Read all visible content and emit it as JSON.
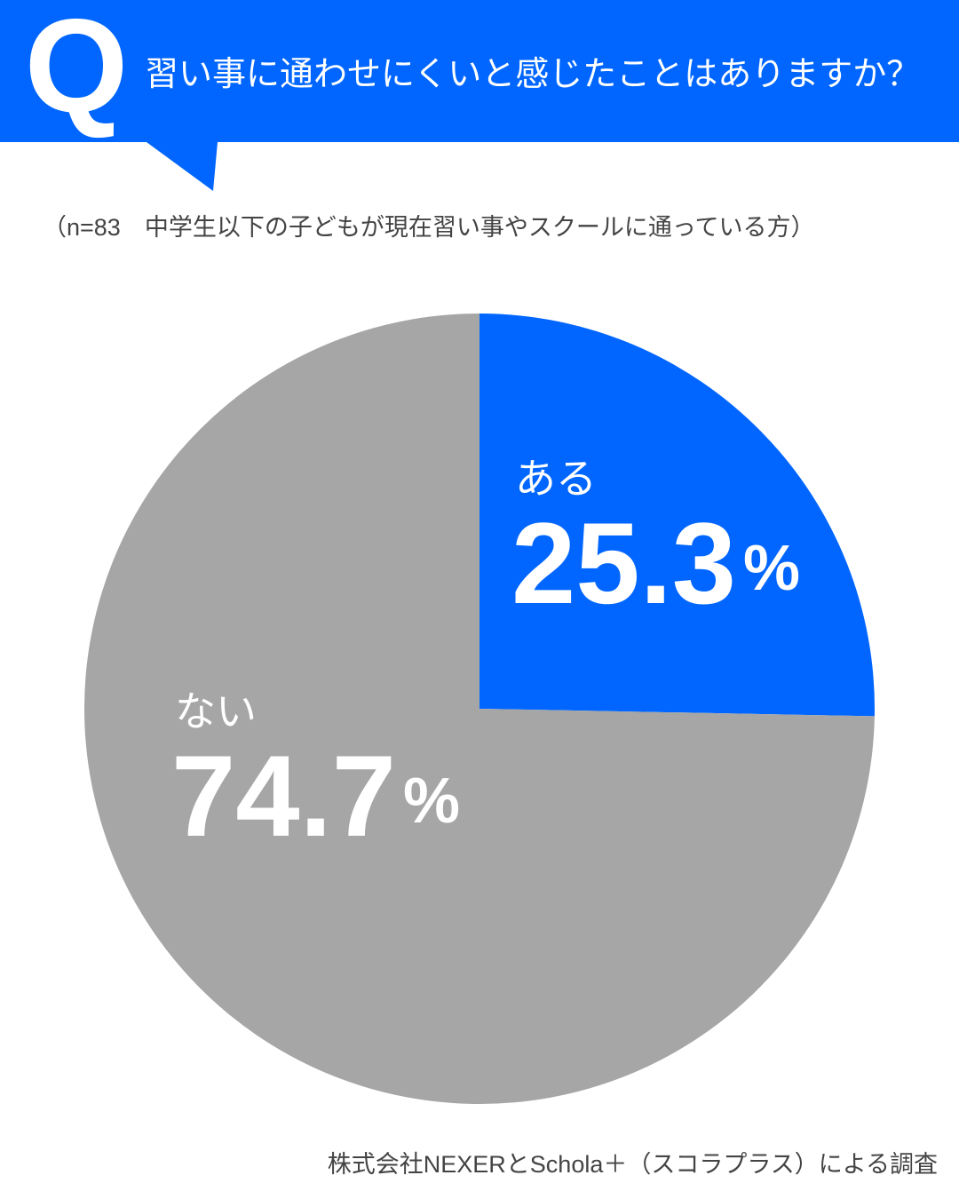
{
  "chart_data": {
    "type": "pie",
    "badge": "Q",
    "title": "習い事に通わせにくいと感じたことはありますか？",
    "subtitle": "（n=83　中学生以下の子どもが現在習い事やスクールに通っている方）",
    "categories": [
      "ある",
      "ない"
    ],
    "values": [
      25.3,
      74.7
    ],
    "value_labels": [
      "25.3%",
      "74.7%"
    ],
    "colors": [
      "#0066ff",
      "#a6a6a6"
    ],
    "source": "株式会社NEXERとSchola＋（スコラプラス）による調査"
  }
}
